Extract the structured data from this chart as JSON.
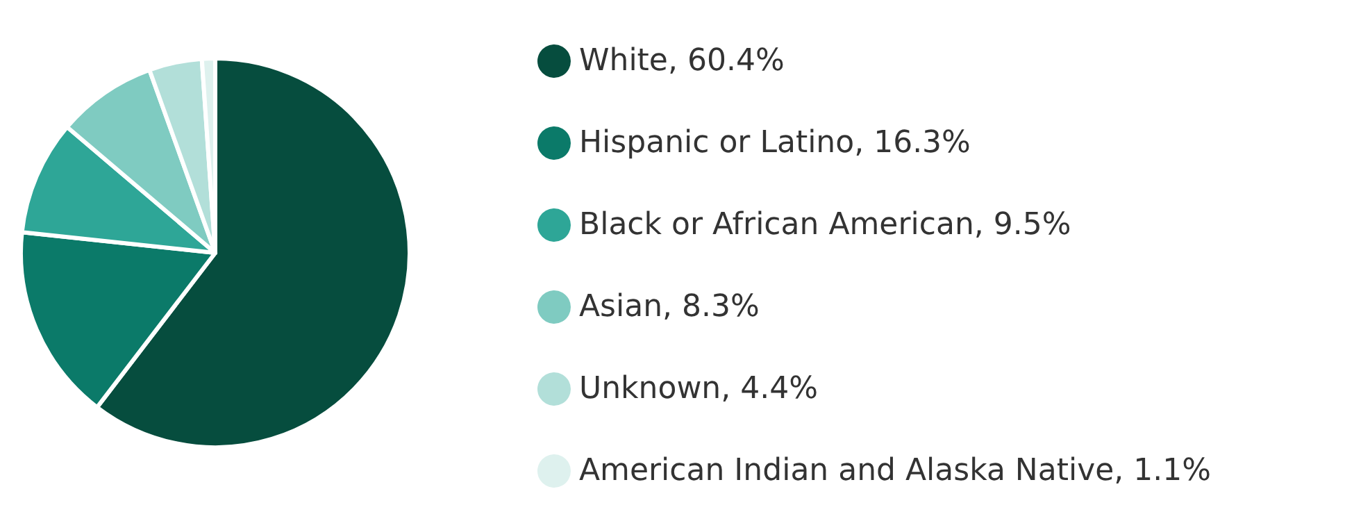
{
  "chart_data": {
    "type": "pie",
    "categories": [
      "White, 60.4%",
      "Hispanic or Latino, 16.3%",
      "Black or African American, 9.5%",
      "Asian, 8.3%",
      "Unknown, 4.4%",
      "American Indian and Alaska Native, 1.1%"
    ],
    "values": [
      60.4,
      16.3,
      9.5,
      8.3,
      4.4,
      1.1
    ],
    "colors": [
      "#064d3e",
      "#0b7a69",
      "#2ea697",
      "#7fcbc1",
      "#b2dfd9",
      "#def1ee"
    ],
    "legend": "right"
  }
}
